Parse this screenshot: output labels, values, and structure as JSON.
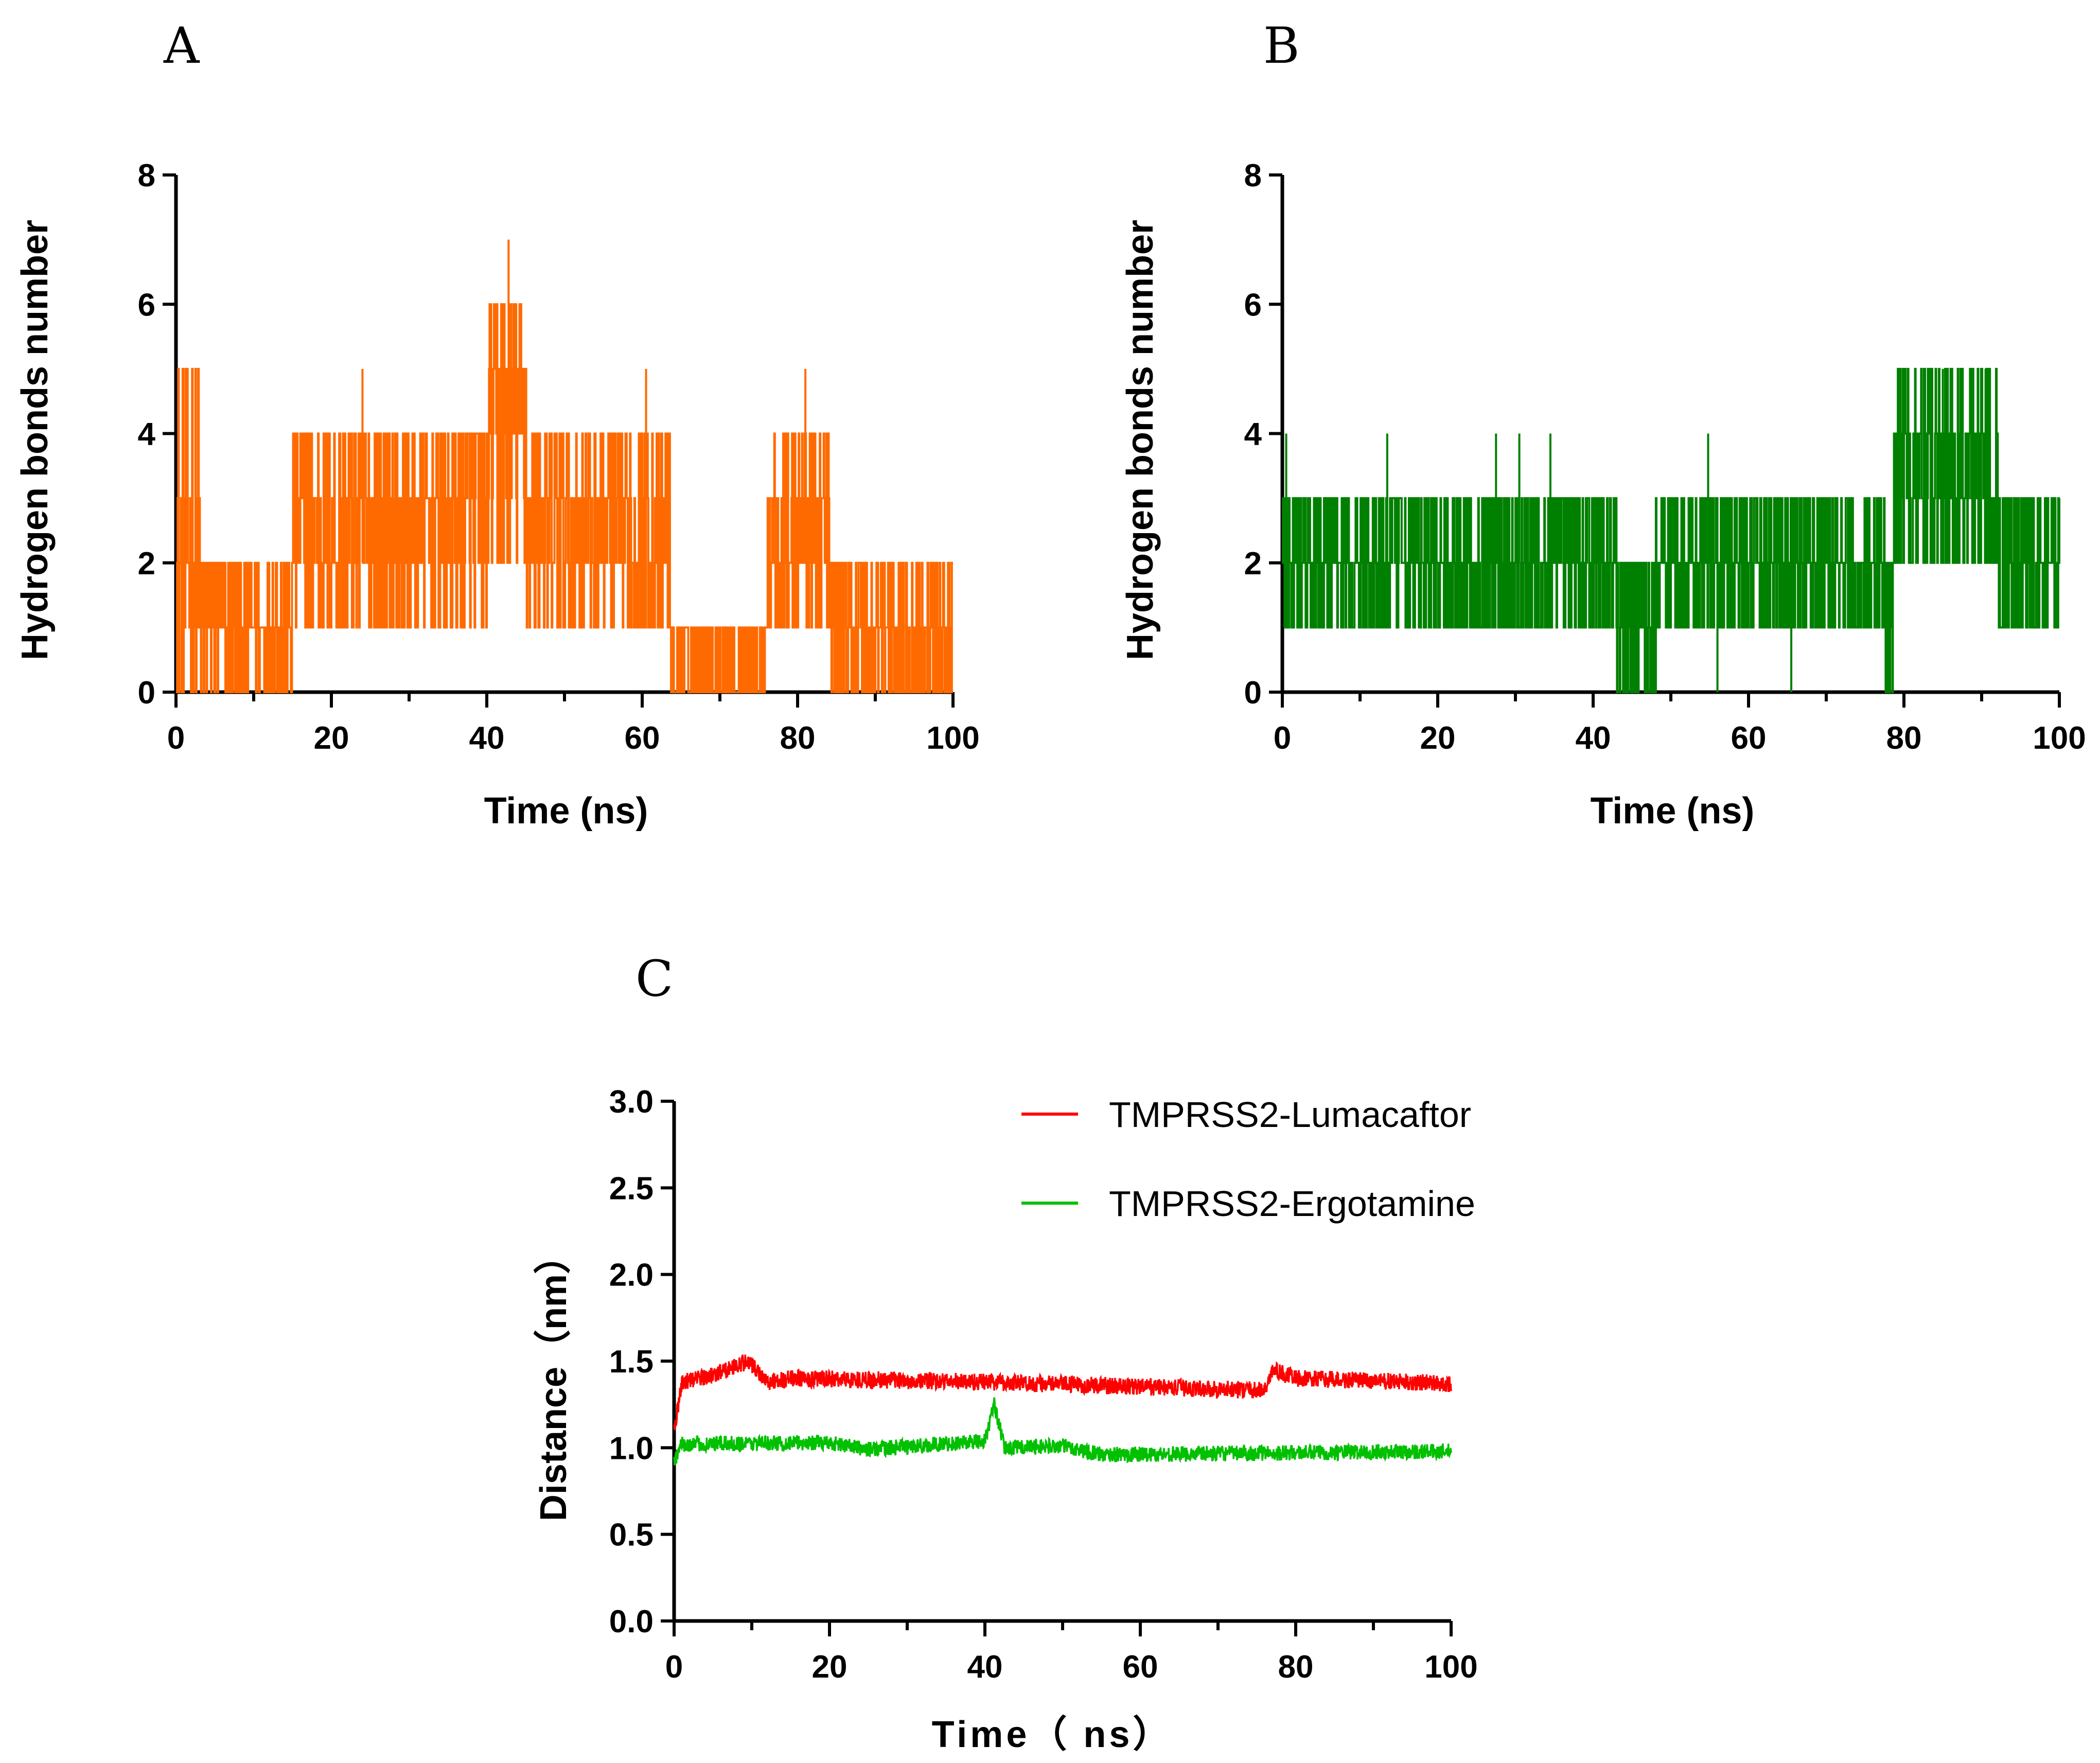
{
  "chart_data": [
    {
      "panel": "A",
      "type": "line",
      "xlabel": "Time (ns)",
      "ylabel": "Hydrogen bonds number",
      "xlim": [
        0,
        100
      ],
      "ylim": [
        0,
        8
      ],
      "xticks": [
        "0",
        "20",
        "40",
        "60",
        "80",
        "100"
      ],
      "yticks": [
        "0",
        "2",
        "4",
        "6",
        "8"
      ],
      "series": [
        {
          "color": "#ff6a00",
          "segments": [
            {
              "x": [
                0,
                3
              ],
              "levels": [
                0,
                1,
                2,
                3,
                5
              ]
            },
            {
              "x": [
                3,
                15
              ],
              "levels": [
                0,
                1,
                2
              ]
            },
            {
              "x": [
                15,
                40
              ],
              "levels": [
                1,
                2,
                3,
                4
              ]
            },
            {
              "x": [
                40,
                45
              ],
              "levels": [
                2,
                3,
                4,
                5,
                6
              ]
            },
            {
              "x": [
                45,
                63.5
              ],
              "levels": [
                1,
                2,
                3,
                4
              ]
            },
            {
              "x": [
                63.5,
                76
              ],
              "levels": [
                0,
                1
              ]
            },
            {
              "x": [
                76,
                84
              ],
              "levels": [
                1,
                2,
                3,
                4
              ]
            },
            {
              "x": [
                84,
                100
              ],
              "levels": [
                0,
                1,
                2
              ]
            }
          ],
          "peaks": [
            {
              "x": 42.8,
              "y": 7
            },
            {
              "x": 24,
              "y": 5
            },
            {
              "x": 60.5,
              "y": 5
            },
            {
              "x": 81,
              "y": 5
            },
            {
              "x": 1.5,
              "y": 5
            }
          ]
        }
      ]
    },
    {
      "panel": "B",
      "type": "line",
      "xlabel": "Time (ns)",
      "ylabel": "Hydrogen bonds number",
      "xlim": [
        0,
        100
      ],
      "ylim": [
        0,
        8
      ],
      "xticks": [
        "0",
        "20",
        "40",
        "60",
        "80",
        "100"
      ],
      "yticks": [
        "0",
        "2",
        "4",
        "6",
        "8"
      ],
      "series": [
        {
          "color": "#008000",
          "segments": [
            {
              "x": [
                0,
                43
              ],
              "levels": [
                1,
                2,
                3
              ]
            },
            {
              "x": [
                43,
                48
              ],
              "levels": [
                0,
                1,
                2
              ]
            },
            {
              "x": [
                48,
                77.5
              ],
              "levels": [
                1,
                2,
                3
              ]
            },
            {
              "x": [
                77.5,
                78.5
              ],
              "levels": [
                0,
                1,
                2
              ]
            },
            {
              "x": [
                78.5,
                92
              ],
              "levels": [
                2,
                3,
                4,
                5
              ]
            },
            {
              "x": [
                92,
                100
              ],
              "levels": [
                1,
                2,
                3
              ]
            }
          ],
          "peaks": [
            {
              "x": 13.5,
              "y": 4
            },
            {
              "x": 27.5,
              "y": 4
            },
            {
              "x": 30.5,
              "y": 4
            },
            {
              "x": 34.5,
              "y": 4
            },
            {
              "x": 54.8,
              "y": 4
            },
            {
              "x": 56,
              "y": 0
            },
            {
              "x": 65.5,
              "y": 0
            },
            {
              "x": 0.5,
              "y": 4
            },
            {
              "x": 85,
              "y": 5
            },
            {
              "x": 90.5,
              "y": 5
            }
          ]
        }
      ]
    },
    {
      "panel": "C",
      "type": "line",
      "xlabel": "Time（ ns）",
      "ylabel": "Distance（nm）",
      "xlim": [
        0,
        100
      ],
      "ylim": [
        0,
        3.0
      ],
      "xticks": [
        "0",
        "20",
        "40",
        "60",
        "80",
        "100"
      ],
      "yticks": [
        "0.0",
        "0.5",
        "1.0",
        "1.5",
        "2.0",
        "2.5",
        "3.0"
      ],
      "legend_position": "top-right",
      "series": [
        {
          "name": "TMPRSS2-Lumacaftor",
          "color": "#ff0000",
          "mean": [
            [
              0,
              1.1
            ],
            [
              1,
              1.38
            ],
            [
              5,
              1.42
            ],
            [
              9.5,
              1.5
            ],
            [
              12,
              1.38
            ],
            [
              15,
              1.4
            ],
            [
              40,
              1.38
            ],
            [
              76,
              1.33
            ],
            [
              77,
              1.45
            ],
            [
              80,
              1.4
            ],
            [
              100,
              1.37
            ]
          ],
          "noise": 0.05
        },
        {
          "name": "TMPRSS2-Ergotamine",
          "color": "#00c000",
          "mean": [
            [
              0,
              0.92
            ],
            [
              1,
              1.02
            ],
            [
              20,
              1.03
            ],
            [
              25,
              0.99
            ],
            [
              40,
              1.04
            ],
            [
              41.2,
              1.25
            ],
            [
              42.5,
              1.0
            ],
            [
              50,
              1.01
            ],
            [
              55,
              0.96
            ],
            [
              100,
              0.98
            ]
          ],
          "noise": 0.045
        }
      ]
    }
  ]
}
